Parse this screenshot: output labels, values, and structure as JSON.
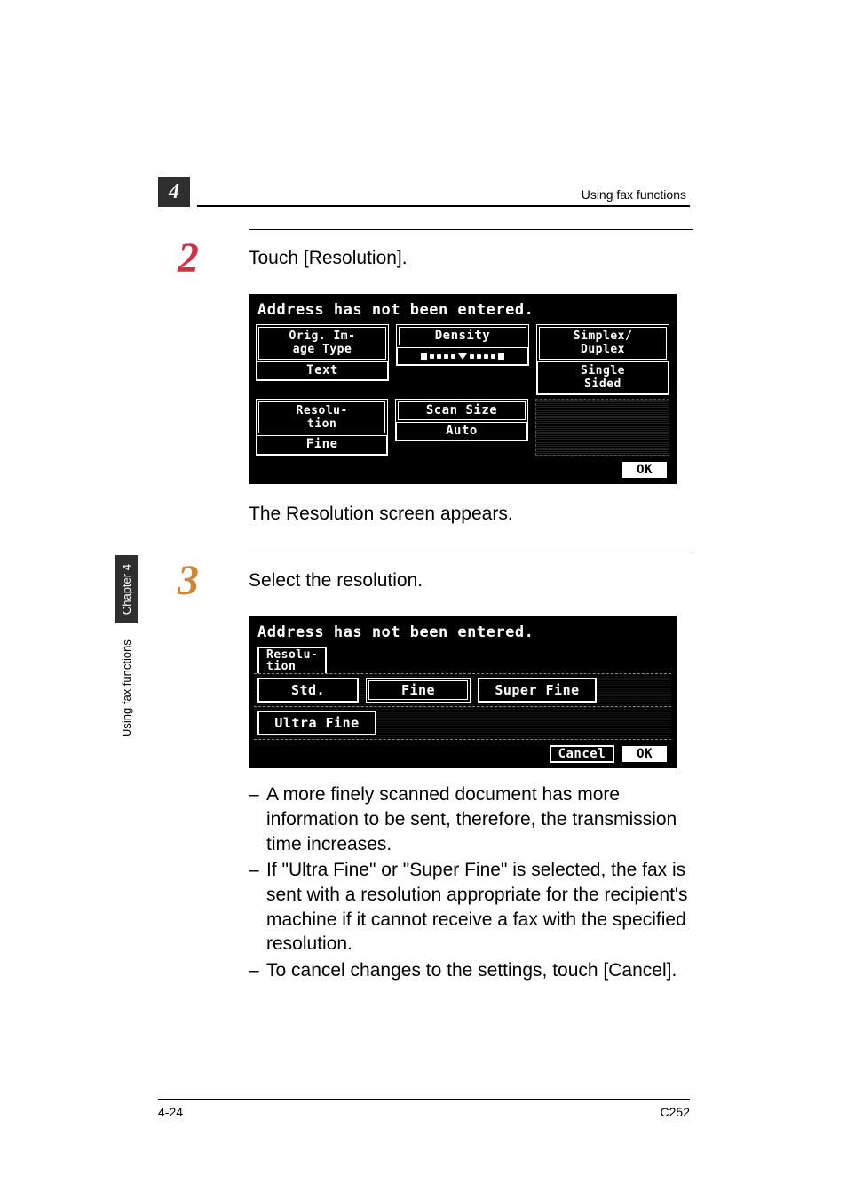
{
  "header": {
    "chapter_number": "4",
    "running_head": "Using fax functions"
  },
  "side_tab": {
    "section": "Using fax functions",
    "chapter": "Chapter 4"
  },
  "steps": {
    "step2": {
      "number": "2",
      "number_color": "#cc3344",
      "text": "Touch [Resolution]."
    },
    "step3": {
      "number": "3",
      "number_color": "#cc8833",
      "text": "Select the resolution."
    }
  },
  "mid_text": "The Resolution screen appears.",
  "lcd1": {
    "status": "Address has not been entered.",
    "cells": {
      "orig_label": "Orig. Im-\nage Type",
      "orig_value": "Text",
      "density_label": "Density",
      "simplex_label": "Simplex/\nDuplex",
      "simplex_value": "Single\nSided",
      "resolution_label": "Resolu-\ntion",
      "resolution_value": "Fine",
      "scansize_label": "Scan Size",
      "scansize_value": "Auto"
    },
    "ok": "OK"
  },
  "lcd2": {
    "status": "Address has not been entered.",
    "tab": "Resolu-\ntion",
    "options": {
      "std": "Std.",
      "fine": "Fine",
      "super_fine": "Super Fine",
      "ultra_fine": "Ultra Fine"
    },
    "cancel": "Cancel",
    "ok": "OK"
  },
  "bullets": {
    "b1": "A more finely scanned document has more information to be sent, therefore, the transmission time increases.",
    "b2": "If \"Ultra Fine\" or \"Super Fine\" is selected, the fax is sent with a resolution appropriate for the recipient's machine if it cannot receive a fax with the specified resolution.",
    "b3": "To cancel changes to the settings, touch [Cancel]."
  },
  "footer": {
    "page": "4-24",
    "model": "C252"
  },
  "colors": {
    "page_bg": "#ffffff",
    "text": "#000000",
    "header_box_bg": "#2f2f2f",
    "lcd_bg": "#000000",
    "lcd_fg": "#ffffff"
  }
}
